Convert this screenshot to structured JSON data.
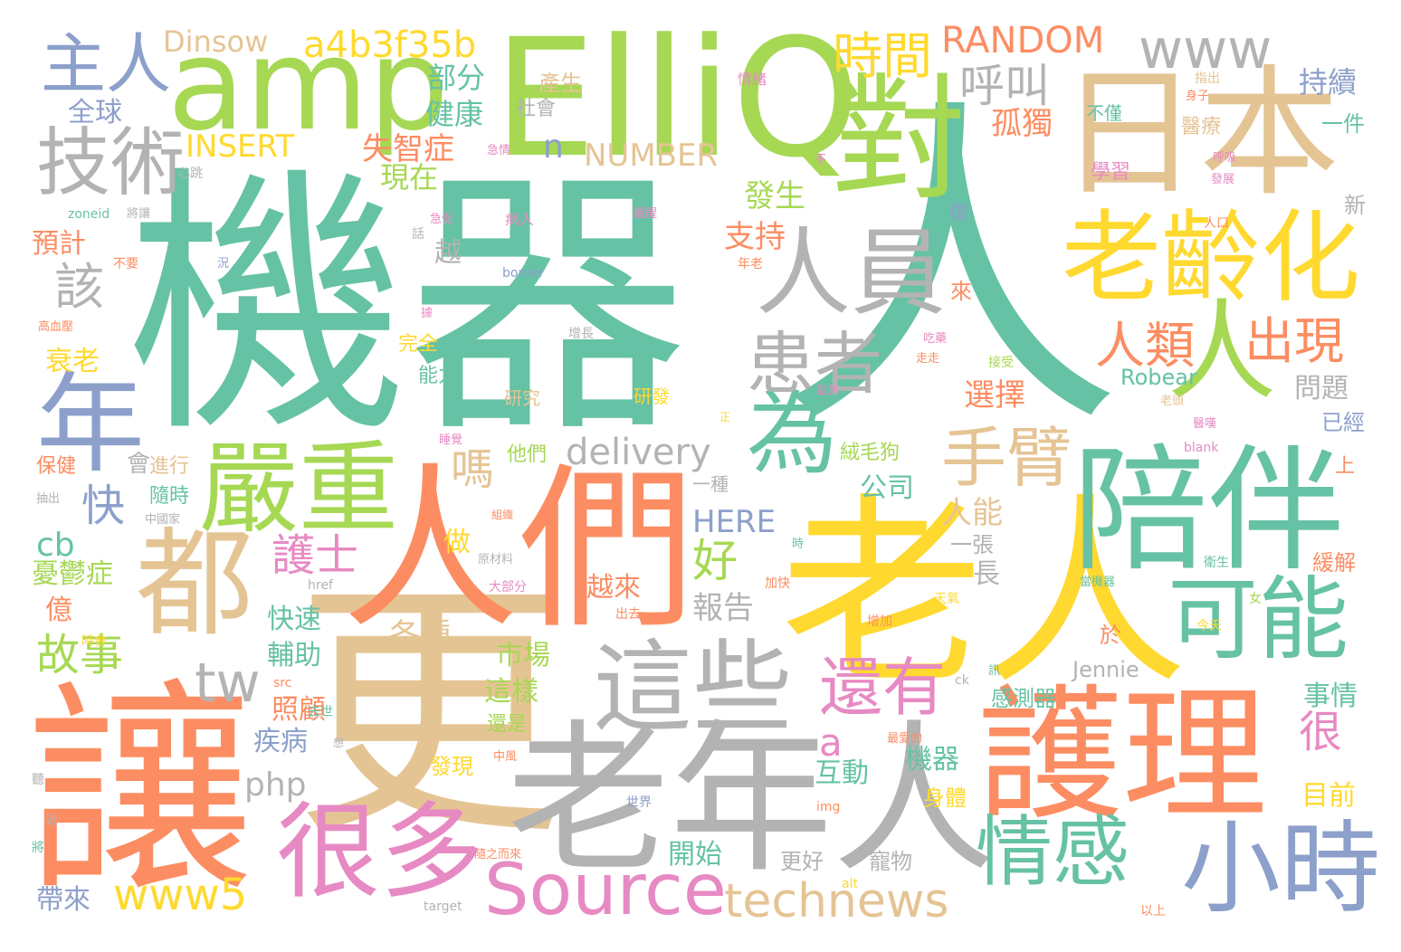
{
  "palette": {
    "teal": "#66c2a5",
    "orange": "#fc8d62",
    "blue": "#8da0cb",
    "pink": "#e78ac3",
    "lime": "#a6d854",
    "yellow": "#ffd92f",
    "tan": "#e5c494",
    "gray": "#b3b3b3"
  },
  "words": [
    {
      "text": "機器",
      "color": "teal"
    },
    {
      "text": "人",
      "color": "teal"
    },
    {
      "text": "讓",
      "color": "orange"
    },
    {
      "text": "更",
      "color": "tan"
    },
    {
      "text": "老年人",
      "color": "gray"
    },
    {
      "text": "人們",
      "color": "orange"
    },
    {
      "text": "老人",
      "color": "yellow"
    },
    {
      "text": "ElliQ",
      "color": "lime"
    },
    {
      "text": "日本",
      "color": "tan"
    },
    {
      "text": "護理",
      "color": "orange"
    },
    {
      "text": "陪伴",
      "color": "teal"
    },
    {
      "text": "amp",
      "color": "lime"
    },
    {
      "text": "對",
      "color": "lime"
    },
    {
      "text": "老齡化",
      "color": "yellow"
    },
    {
      "text": "都",
      "color": "tan"
    },
    {
      "text": "很多",
      "color": "pink"
    },
    {
      "text": "這些",
      "color": "gray"
    },
    {
      "text": "嚴重",
      "color": "lime"
    },
    {
      "text": "人員",
      "color": "gray"
    },
    {
      "text": "小時",
      "color": "blue"
    },
    {
      "text": "可能",
      "color": "teal"
    },
    {
      "text": "情感",
      "color": "teal"
    },
    {
      "text": "Source",
      "color": "pink"
    },
    {
      "text": "technews",
      "color": "tan"
    },
    {
      "text": "年",
      "color": "blue"
    },
    {
      "text": "為",
      "color": "teal"
    },
    {
      "text": "人",
      "color": "lime"
    },
    {
      "text": "技術",
      "color": "gray"
    },
    {
      "text": "主人",
      "color": "blue"
    },
    {
      "text": "患者",
      "color": "gray"
    },
    {
      "text": "手臂",
      "color": "tan"
    },
    {
      "text": "還有",
      "color": "pink"
    },
    {
      "text": "人類",
      "color": "orange"
    },
    {
      "text": "出現",
      "color": "orange"
    },
    {
      "text": "時間",
      "color": "yellow"
    },
    {
      "text": "www5",
      "color": "yellow"
    },
    {
      "text": "www",
      "color": "gray"
    },
    {
      "text": "a4b3f35b",
      "color": "yellow"
    },
    {
      "text": "RANDOM",
      "color": "orange"
    },
    {
      "text": "Dinsow",
      "color": "tan"
    },
    {
      "text": "呼叫",
      "color": "gray"
    },
    {
      "text": "delivery",
      "color": "gray"
    },
    {
      "text": "tw",
      "color": "gray"
    },
    {
      "text": "故事",
      "color": "lime"
    },
    {
      "text": "快",
      "color": "blue"
    },
    {
      "text": "該",
      "color": "gray"
    },
    {
      "text": "好",
      "color": "lime"
    },
    {
      "text": "嗎",
      "color": "tan"
    },
    {
      "text": "護士",
      "color": "pink"
    },
    {
      "text": "php",
      "color": "gray"
    },
    {
      "text": "a",
      "color": "pink"
    },
    {
      "text": "很",
      "color": "pink"
    },
    {
      "text": "INSERT",
      "color": "yellow"
    },
    {
      "text": "NUMBER",
      "color": "tan"
    },
    {
      "text": "HERE",
      "color": "blue"
    },
    {
      "text": "Robear",
      "color": "teal"
    },
    {
      "text": "Jennie",
      "color": "gray"
    },
    {
      "text": "cb",
      "color": "teal"
    },
    {
      "text": "n",
      "color": "blue"
    },
    {
      "text": "全球",
      "color": "blue"
    },
    {
      "text": "部分",
      "color": "teal"
    },
    {
      "text": "健康",
      "color": "teal"
    },
    {
      "text": "失智症",
      "color": "orange"
    },
    {
      "text": "孤獨",
      "color": "orange"
    },
    {
      "text": "持續",
      "color": "blue"
    },
    {
      "text": "產生",
      "color": "tan"
    },
    {
      "text": "社會",
      "color": "gray"
    },
    {
      "text": "現在",
      "color": "lime"
    },
    {
      "text": "發生",
      "color": "lime"
    },
    {
      "text": "支持",
      "color": "orange"
    },
    {
      "text": "越",
      "color": "gray"
    },
    {
      "text": "預計",
      "color": "orange"
    },
    {
      "text": "衰老",
      "color": "yellow"
    },
    {
      "text": "選擇",
      "color": "orange"
    },
    {
      "text": "問題",
      "color": "gray"
    },
    {
      "text": "已經",
      "color": "blue"
    },
    {
      "text": "公司",
      "color": "teal"
    },
    {
      "text": "人能",
      "color": "tan"
    },
    {
      "text": "一張",
      "color": "gray"
    },
    {
      "text": "長",
      "color": "gray"
    },
    {
      "text": "報告",
      "color": "gray"
    },
    {
      "text": "市場",
      "color": "lime"
    },
    {
      "text": "各種",
      "color": "tan"
    },
    {
      "text": "快速",
      "color": "teal"
    },
    {
      "text": "輔助",
      "color": "teal"
    },
    {
      "text": "照顧",
      "color": "orange"
    },
    {
      "text": "疾病",
      "color": "blue"
    },
    {
      "text": "互動",
      "color": "teal"
    },
    {
      "text": "機器",
      "color": "teal"
    },
    {
      "text": "身體",
      "color": "yellow"
    },
    {
      "text": "開始",
      "color": "teal"
    },
    {
      "text": "更好",
      "color": "gray"
    },
    {
      "text": "寵物",
      "color": "gray"
    },
    {
      "text": "帶來",
      "color": "blue"
    },
    {
      "text": "這樣",
      "color": "lime"
    },
    {
      "text": "還是",
      "color": "lime"
    },
    {
      "text": "發現",
      "color": "yellow"
    },
    {
      "text": "越來",
      "color": "orange"
    },
    {
      "text": "做",
      "color": "yellow"
    },
    {
      "text": "憂鬱症",
      "color": "lime"
    },
    {
      "text": "億",
      "color": "orange"
    },
    {
      "text": "事情",
      "color": "teal"
    },
    {
      "text": "目前",
      "color": "yellow"
    },
    {
      "text": "感測器",
      "color": "teal"
    },
    {
      "text": "於",
      "color": "orange"
    },
    {
      "text": "緩解",
      "color": "orange"
    },
    {
      "text": "上",
      "color": "orange"
    },
    {
      "text": "新",
      "color": "gray"
    },
    {
      "text": "一件",
      "color": "teal"
    },
    {
      "text": "醫療",
      "color": "tan"
    },
    {
      "text": "學習",
      "color": "pink"
    },
    {
      "text": "不僅",
      "color": "teal"
    },
    {
      "text": "研究",
      "color": "tan"
    },
    {
      "text": "研發",
      "color": "yellow"
    },
    {
      "text": "能力",
      "color": "teal"
    },
    {
      "text": "完全",
      "color": "yellow"
    },
    {
      "text": "他們",
      "color": "lime"
    },
    {
      "text": "絨毛狗",
      "color": "lime"
    },
    {
      "text": "會",
      "color": "gray"
    },
    {
      "text": "進行",
      "color": "tan"
    },
    {
      "text": "隨時",
      "color": "teal"
    },
    {
      "text": "保健",
      "color": "orange"
    },
    {
      "text": "一種",
      "color": "gray"
    },
    {
      "text": "復",
      "color": "blue"
    },
    {
      "text": "病人",
      "color": "pink"
    },
    {
      "text": "情緒",
      "color": "pink"
    },
    {
      "text": "心跳",
      "color": "gray"
    },
    {
      "text": "高血壓",
      "color": "orange"
    },
    {
      "text": "不要",
      "color": "orange"
    },
    {
      "text": "年老",
      "color": "orange"
    },
    {
      "text": "人口",
      "color": "orange"
    },
    {
      "text": "增長",
      "color": "gray"
    },
    {
      "text": "接受",
      "color": "lime"
    },
    {
      "text": "指出",
      "color": "tan"
    },
    {
      "text": "今天",
      "color": "yellow"
    },
    {
      "text": "天氣",
      "color": "yellow"
    },
    {
      "text": "增加",
      "color": "orange"
    },
    {
      "text": "加快",
      "color": "orange"
    },
    {
      "text": "世界",
      "color": "blue"
    },
    {
      "text": "去世",
      "color": "teal"
    },
    {
      "text": "中國家",
      "color": "gray"
    },
    {
      "text": "隨之而來",
      "color": "orange"
    },
    {
      "text": "zoneid",
      "color": "teal"
    },
    {
      "text": "border",
      "color": "blue"
    },
    {
      "text": "href",
      "color": "gray"
    },
    {
      "text": "src",
      "color": "orange"
    },
    {
      "text": "img",
      "color": "orange"
    },
    {
      "text": "alt",
      "color": "yellow"
    },
    {
      "text": "target",
      "color": "gray"
    },
    {
      "text": "blank",
      "color": "pink"
    },
    {
      "text": "ck",
      "color": "gray"
    },
    {
      "text": "以上",
      "color": "orange"
    },
    {
      "text": "衛生",
      "color": "teal"
    },
    {
      "text": "出去",
      "color": "orange"
    },
    {
      "text": "大部分",
      "color": "pink"
    },
    {
      "text": "原材料",
      "color": "gray"
    },
    {
      "text": "中風",
      "color": "orange"
    },
    {
      "text": "最愛的",
      "color": "orange"
    },
    {
      "text": "來",
      "color": "orange"
    },
    {
      "text": "將",
      "color": "teal"
    },
    {
      "text": "聽",
      "color": "gray"
    },
    {
      "text": "近",
      "color": "gray"
    },
    {
      "text": "想",
      "color": "gray"
    },
    {
      "text": "時會",
      "color": "yellow"
    },
    {
      "text": "不",
      "color": "pink"
    },
    {
      "text": "話",
      "color": "gray"
    },
    {
      "text": "況",
      "color": "blue"
    },
    {
      "text": "據",
      "color": "pink"
    },
    {
      "text": "正",
      "color": "yellow"
    },
    {
      "text": "時",
      "color": "teal"
    },
    {
      "text": "女",
      "color": "lime"
    },
    {
      "text": "呼吸",
      "color": "pink"
    },
    {
      "text": "發展",
      "color": "pink"
    },
    {
      "text": "抽出",
      "color": "gray"
    },
    {
      "text": "睡覺",
      "color": "pink"
    },
    {
      "text": "醒醒",
      "color": "pink"
    },
    {
      "text": "急促",
      "color": "pink"
    },
    {
      "text": "急情",
      "color": "pink"
    },
    {
      "text": "將讓",
      "color": "gray"
    },
    {
      "text": "身子",
      "color": "orange"
    },
    {
      "text": "當機器",
      "color": "teal"
    },
    {
      "text": "吃藥",
      "color": "pink"
    },
    {
      "text": "走走",
      "color": "orange"
    },
    {
      "text": "老頭",
      "color": "tan"
    },
    {
      "text": "監測",
      "color": "pink"
    },
    {
      "text": "醫嘆",
      "color": "pink"
    },
    {
      "text": "組織",
      "color": "orange"
    },
    {
      "text": "訊",
      "color": "teal"
    }
  ]
}
